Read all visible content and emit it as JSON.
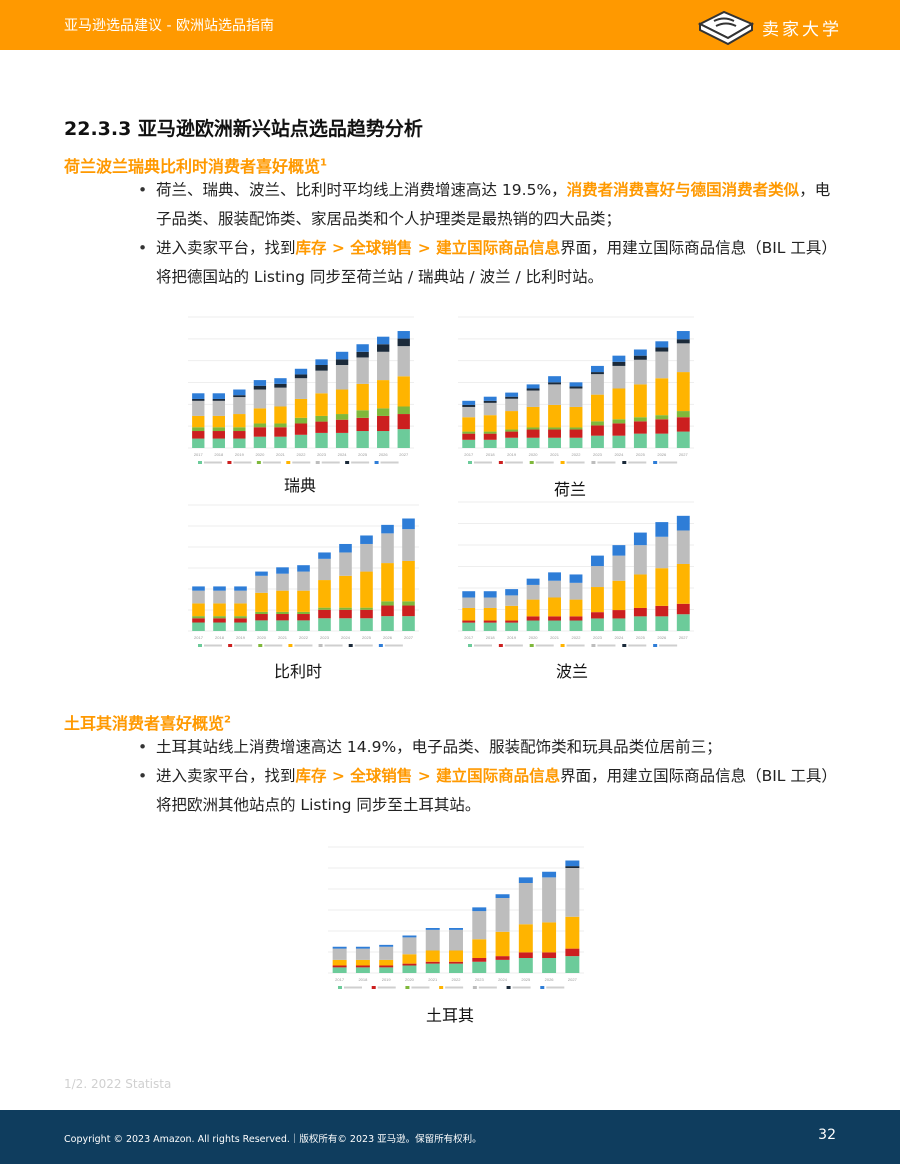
{
  "header": {
    "title": "亚马逊选品建议 - 欧洲站选品指南",
    "brand": "卖家大学",
    "logo_icon": "book-logo-icon"
  },
  "section_title": "22.3.3 亚马逊欧洲新兴站点选品趋势分析",
  "block1": {
    "title": "荷兰波兰瑞典比利时消费者喜好概览",
    "note_marker": "1",
    "bullet1": {
      "text_a": "荷兰、瑞典、波兰、比利时平均线上消费增速高达 19.5%，",
      "highlight": "消费者消费喜好与德国消费者类似",
      "text_b": "，电子品类、服装配饰类、家居品类和个人护理类是最热销的四大品类；"
    },
    "bullet2": {
      "text_a": "进入卖家平台，找到",
      "highlight": "库存 > 全球销售 > 建立国际商品信息",
      "text_b": "界面，用建立国际商品信息（BIL 工具）将把德国站的 Listing 同步至荷兰站 / 瑞典站 / 波兰 / 比利时站。"
    }
  },
  "block2": {
    "title": "土耳其消费者喜好概览",
    "note_marker": "2",
    "bullet1": {
      "text": "土耳其站线上消费增速高达 14.9%，电子品类、服装配饰类和玩具品类位居前三；"
    },
    "bullet2": {
      "text_a": "进入卖家平台，找到",
      "highlight": "库存 > 全球销售 > 建立国际商品信息",
      "text_b": "界面，用建立国际商品信息（BIL 工具）将把欧洲其他站点的 Listing 同步至土耳其站。"
    }
  },
  "colors": {
    "accent": "#FF9900",
    "footer": "#0F3D5E",
    "segments": [
      "#6CCB9A",
      "#CC1F1F",
      "#7FB83B",
      "#FFB400",
      "#BDBDBD",
      "#1B2A3A",
      "#2E7DD7"
    ]
  },
  "chart_data": [
    {
      "type": "bar",
      "stacked": true,
      "caption": "瑞典",
      "categories": [
        "2017",
        "2018",
        "2019",
        "2020",
        "2021",
        "2022",
        "2023",
        "2024",
        "2025",
        "2026",
        "2027"
      ],
      "series": [
        {
          "values": [
            5,
            5,
            5,
            6,
            6,
            7,
            8,
            8,
            9,
            9,
            10
          ]
        },
        {
          "values": [
            4,
            4,
            4,
            5,
            5,
            6,
            6,
            7,
            7,
            8,
            8
          ]
        },
        {
          "values": [
            2,
            2,
            2,
            2,
            2,
            3,
            3,
            3,
            4,
            4,
            4
          ]
        },
        {
          "values": [
            6,
            6,
            7,
            8,
            9,
            10,
            12,
            13,
            14,
            15,
            16
          ]
        },
        {
          "values": [
            8,
            8,
            9,
            10,
            10,
            11,
            12,
            13,
            14,
            15,
            16
          ]
        },
        {
          "values": [
            1,
            1,
            1,
            2,
            2,
            2,
            3,
            3,
            3,
            4,
            4
          ]
        },
        {
          "values": [
            3,
            3,
            3,
            3,
            3,
            3,
            3,
            4,
            4,
            4,
            4
          ]
        }
      ]
    },
    {
      "type": "bar",
      "stacked": true,
      "caption": "荷兰",
      "categories": [
        "2017",
        "2018",
        "2019",
        "2020",
        "2021",
        "2022",
        "2023",
        "2024",
        "2025",
        "2026",
        "2027"
      ],
      "series": [
        {
          "values": [
            4,
            4,
            5,
            5,
            5,
            5,
            6,
            6,
            7,
            7,
            8
          ]
        },
        {
          "values": [
            3,
            3,
            3,
            4,
            4,
            4,
            5,
            6,
            6,
            7,
            7
          ]
        },
        {
          "values": [
            1,
            1,
            1,
            1,
            1,
            1,
            2,
            2,
            2,
            2,
            3
          ]
        },
        {
          "values": [
            7,
            8,
            9,
            10,
            11,
            10,
            13,
            15,
            16,
            18,
            19
          ]
        },
        {
          "values": [
            5,
            6,
            6,
            8,
            10,
            9,
            10,
            11,
            12,
            13,
            14
          ]
        },
        {
          "values": [
            1,
            1,
            1,
            1,
            1,
            1,
            1,
            2,
            2,
            2,
            2
          ]
        },
        {
          "values": [
            2,
            2,
            2,
            2,
            3,
            2,
            3,
            3,
            3,
            3,
            4
          ]
        }
      ]
    },
    {
      "type": "bar",
      "stacked": true,
      "caption": "比利时",
      "categories": [
        "2017",
        "2018",
        "2019",
        "2020",
        "2021",
        "2022",
        "2023",
        "2024",
        "2025",
        "2026",
        "2027"
      ],
      "series": [
        {
          "values": [
            4,
            4,
            4,
            5,
            5,
            5,
            6,
            6,
            6,
            7,
            7
          ]
        },
        {
          "values": [
            2,
            2,
            2,
            3,
            3,
            3,
            4,
            4,
            4,
            5,
            5
          ]
        },
        {
          "values": [
            1,
            1,
            1,
            1,
            1,
            1,
            1,
            1,
            1,
            2,
            2
          ]
        },
        {
          "values": [
            6,
            6,
            6,
            9,
            10,
            10,
            13,
            15,
            17,
            18,
            19
          ]
        },
        {
          "values": [
            6,
            6,
            6,
            8,
            8,
            9,
            10,
            11,
            13,
            14,
            15
          ]
        },
        {
          "values": [
            0,
            0,
            0,
            0,
            0,
            0,
            0,
            0,
            0,
            0,
            0
          ]
        },
        {
          "values": [
            2,
            2,
            2,
            2,
            3,
            3,
            3,
            4,
            4,
            4,
            5
          ]
        }
      ]
    },
    {
      "type": "bar",
      "stacked": true,
      "caption": "波兰",
      "categories": [
        "2017",
        "2018",
        "2019",
        "2020",
        "2021",
        "2022",
        "2023",
        "2024",
        "2025",
        "2026",
        "2027"
      ],
      "series": [
        {
          "values": [
            4,
            4,
            4,
            5,
            5,
            5,
            6,
            6,
            7,
            7,
            8
          ]
        },
        {
          "values": [
            1,
            1,
            1,
            2,
            2,
            2,
            3,
            4,
            4,
            5,
            5
          ]
        },
        {
          "values": [
            0,
            0,
            0,
            0,
            0,
            0,
            0,
            0,
            0,
            0,
            0
          ]
        },
        {
          "values": [
            6,
            6,
            7,
            8,
            9,
            8,
            12,
            14,
            16,
            18,
            19
          ]
        },
        {
          "values": [
            5,
            5,
            5,
            7,
            8,
            8,
            10,
            12,
            14,
            15,
            16
          ]
        },
        {
          "values": [
            0,
            0,
            0,
            0,
            0,
            0,
            0,
            0,
            0,
            0,
            0
          ]
        },
        {
          "values": [
            3,
            3,
            3,
            3,
            4,
            4,
            5,
            5,
            6,
            7,
            7
          ]
        }
      ]
    },
    {
      "type": "bar",
      "stacked": true,
      "caption": "土耳其",
      "categories": [
        "2017",
        "2018",
        "2019",
        "2020",
        "2021",
        "2022",
        "2023",
        "2024",
        "2025",
        "2026",
        "2027"
      ],
      "series": [
        {
          "values": [
            3,
            3,
            3,
            4,
            5,
            5,
            6,
            7,
            8,
            8,
            9
          ]
        },
        {
          "values": [
            1,
            1,
            1,
            1,
            1,
            1,
            2,
            2,
            3,
            3,
            4
          ]
        },
        {
          "values": [
            0,
            0,
            0,
            0,
            0,
            0,
            0,
            0,
            0,
            0,
            0
          ]
        },
        {
          "values": [
            3,
            3,
            3,
            5,
            6,
            6,
            10,
            13,
            15,
            16,
            17
          ]
        },
        {
          "values": [
            6,
            6,
            7,
            9,
            11,
            11,
            15,
            18,
            22,
            24,
            26
          ]
        },
        {
          "values": [
            0,
            0,
            0,
            0,
            0,
            0,
            0,
            0,
            0,
            0,
            1
          ]
        },
        {
          "values": [
            1,
            1,
            1,
            1,
            1,
            1,
            2,
            2,
            3,
            3,
            3
          ]
        }
      ]
    }
  ],
  "footnote": "1/2. 2022 Statista",
  "footer": {
    "copyright": "Copyright © 2023 Amazon. All rights Reserved.｜版权所有© 2023 亚马逊。保留所有权利。",
    "page_number": "32"
  }
}
